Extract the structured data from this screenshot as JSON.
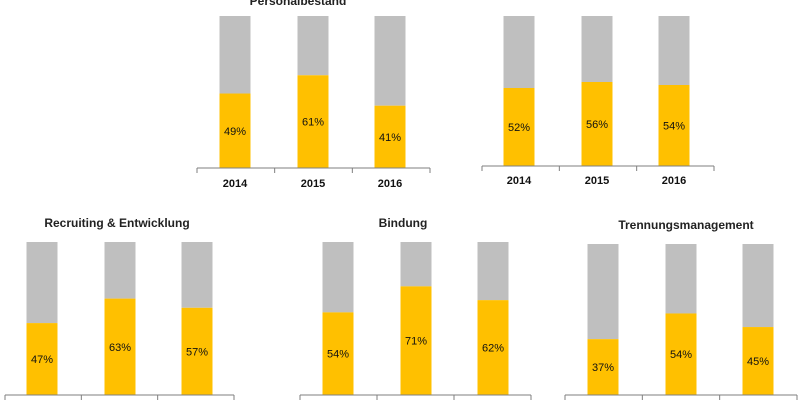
{
  "colors": {
    "accent": "#FFC000",
    "remainder": "#BFBFBF",
    "axis": "#7F7F7F"
  },
  "chart_data": [
    {
      "type": "bar",
      "stacked": true,
      "title": "Personalbestand",
      "categories": [
        "2014",
        "2015",
        "2016"
      ],
      "series": [
        {
          "values": [
            49,
            61,
            41
          ]
        }
      ],
      "data_labels": [
        "49%",
        "61%",
        "41%"
      ],
      "ylim": [
        0,
        100
      ]
    },
    {
      "type": "bar",
      "stacked": true,
      "title": "",
      "categories": [
        "2014",
        "2015",
        "2016"
      ],
      "series": [
        {
          "values": [
            52,
            56,
            54
          ]
        }
      ],
      "data_labels": [
        "52%",
        "56%",
        "54%"
      ],
      "ylim": [
        0,
        100
      ]
    },
    {
      "type": "bar",
      "stacked": true,
      "title": "Recruiting & Entwicklung",
      "categories": [
        "",
        "",
        ""
      ],
      "series": [
        {
          "values": [
            47,
            63,
            57
          ]
        }
      ],
      "data_labels": [
        "47%",
        "63%",
        "57%"
      ],
      "ylim": [
        0,
        100
      ]
    },
    {
      "type": "bar",
      "stacked": true,
      "title": "Bindung",
      "categories": [
        "",
        "",
        ""
      ],
      "series": [
        {
          "values": [
            54,
            71,
            62
          ]
        }
      ],
      "data_labels": [
        "54%",
        "71%",
        "62%"
      ],
      "ylim": [
        0,
        100
      ]
    },
    {
      "type": "bar",
      "stacked": true,
      "title": "Trennungsmanagement",
      "categories": [
        "",
        "",
        ""
      ],
      "series": [
        {
          "values": [
            37,
            54,
            45
          ]
        }
      ],
      "data_labels": [
        "37%",
        "54%",
        "45%"
      ],
      "ylim": [
        0,
        100
      ]
    }
  ]
}
